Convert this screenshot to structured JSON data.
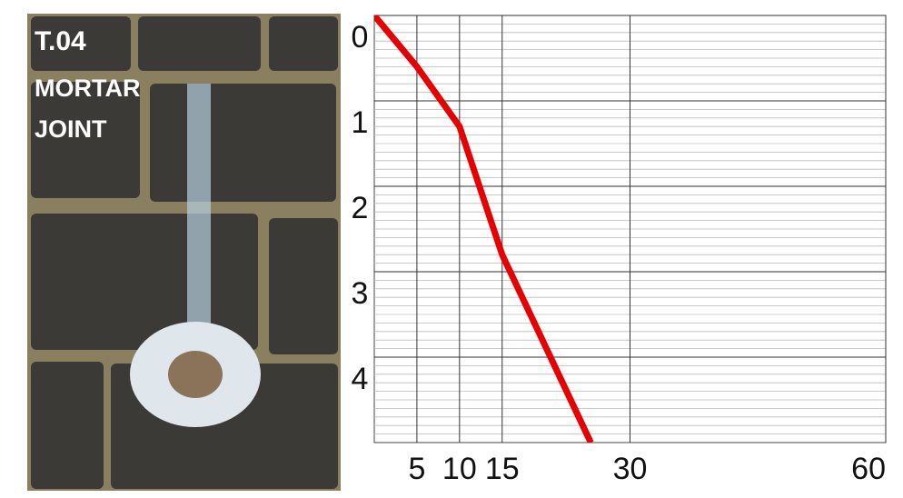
{
  "photo": {
    "label": "T.04",
    "caption": [
      "MORTAR",
      "JOINT"
    ]
  },
  "chart_data": {
    "type": "line",
    "series": [
      {
        "color": "#e60000",
        "x": [
          0,
          5,
          10,
          15,
          25.4
        ],
        "values": [
          0,
          0.6,
          1.3,
          2.8,
          5
        ]
      }
    ],
    "xlim": [
      0,
      60
    ],
    "xticks": [
      5,
      10,
      15,
      30,
      60
    ],
    "ylim": [
      0,
      5
    ],
    "yticks": [
      0,
      1,
      2,
      3,
      4
    ],
    "y_inverted": true,
    "grid": true,
    "minor_grid": true
  }
}
